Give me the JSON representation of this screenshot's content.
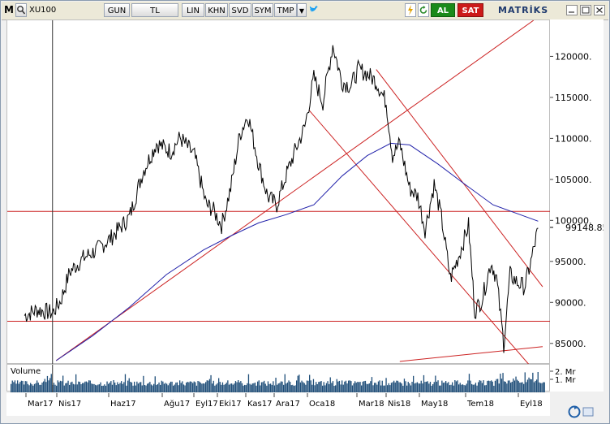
{
  "toolbar": {
    "logo": "M",
    "symbol": "XU100",
    "buttons": [
      "GUN",
      "TL",
      "LIN",
      "KHN",
      "SVD",
      "SYM",
      "TMP"
    ],
    "buy_label": "AL",
    "sell_label": "SAT",
    "brand": "MATRİKS"
  },
  "volume_label": "Volume",
  "icons": [
    "app-logo-icon",
    "search-icon",
    "dropdown-icon",
    "twitter-icon",
    "lightning-icon",
    "refresh-icon",
    "window-controls-icon",
    "redo-icon"
  ],
  "colors": {
    "price": "#000000",
    "ma": "#2222aa",
    "trend": "#cc2222",
    "volume": "#1f4e79",
    "al": "#1a8a1a",
    "sat": "#cc1a1a"
  },
  "chart_data": {
    "type": "line",
    "instrument": "XU100",
    "x_labels": [
      "Mar17",
      "Nis17",
      "Haz17",
      "Ağu17",
      "Eyl17",
      "Eki17",
      "Kas17",
      "Ara17",
      "Oca18",
      "Mar18",
      "Nis18",
      "May18",
      "Tem18",
      "Eyl18"
    ],
    "y_ticks": [
      85000,
      90000,
      95000,
      100000,
      105000,
      110000,
      115000,
      120000
    ],
    "y_tick_labels": [
      "85000.",
      "90000.",
      "95000.",
      "100000.",
      "105000.",
      "110000.",
      "115000.",
      "120000."
    ],
    "ylim": [
      82500,
      124500
    ],
    "last_value": 99148.85,
    "last_value_label": "99148.85",
    "volume_ticks": [
      "2. Mr",
      "1. Mr"
    ],
    "price_series": [
      {
        "x": "2017-03-01",
        "y": 88500
      },
      {
        "x": "2017-03-15",
        "y": 89200
      },
      {
        "x": "2017-04-01",
        "y": 88800
      },
      {
        "x": "2017-04-10",
        "y": 90300
      },
      {
        "x": "2017-04-20",
        "y": 93800
      },
      {
        "x": "2017-05-05",
        "y": 95500
      },
      {
        "x": "2017-05-20",
        "y": 96500
      },
      {
        "x": "2017-06-05",
        "y": 98000
      },
      {
        "x": "2017-06-25",
        "y": 100500
      },
      {
        "x": "2017-07-10",
        "y": 106000
      },
      {
        "x": "2017-07-25",
        "y": 109500
      },
      {
        "x": "2017-08-10",
        "y": 108500
      },
      {
        "x": "2017-08-20",
        "y": 110200
      },
      {
        "x": "2017-09-05",
        "y": 108000
      },
      {
        "x": "2017-09-18",
        "y": 102000
      },
      {
        "x": "2017-09-25",
        "y": 101500
      },
      {
        "x": "2017-10-05",
        "y": 99500
      },
      {
        "x": "2017-10-15",
        "y": 104000
      },
      {
        "x": "2017-10-25",
        "y": 110500
      },
      {
        "x": "2017-11-03",
        "y": 113000
      },
      {
        "x": "2017-11-15",
        "y": 107000
      },
      {
        "x": "2017-11-25",
        "y": 103000
      },
      {
        "x": "2017-12-05",
        "y": 102000
      },
      {
        "x": "2017-12-15",
        "y": 105500
      },
      {
        "x": "2017-12-25",
        "y": 108500
      },
      {
        "x": "2018-01-05",
        "y": 111500
      },
      {
        "x": "2018-01-15",
        "y": 117500
      },
      {
        "x": "2018-01-25",
        "y": 114500
      },
      {
        "x": "2018-02-05",
        "y": 121500
      },
      {
        "x": "2018-02-15",
        "y": 117000
      },
      {
        "x": "2018-02-25",
        "y": 116500
      },
      {
        "x": "2018-03-05",
        "y": 118500
      },
      {
        "x": "2018-03-15",
        "y": 118000
      },
      {
        "x": "2018-03-25",
        "y": 117000
      },
      {
        "x": "2018-04-05",
        "y": 114500
      },
      {
        "x": "2018-04-12",
        "y": 108000
      },
      {
        "x": "2018-04-20",
        "y": 109500
      },
      {
        "x": "2018-05-01",
        "y": 104000
      },
      {
        "x": "2018-05-10",
        "y": 103000
      },
      {
        "x": "2018-05-18",
        "y": 99000
      },
      {
        "x": "2018-05-28",
        "y": 104500
      },
      {
        "x": "2018-06-05",
        "y": 100500
      },
      {
        "x": "2018-06-15",
        "y": 93000
      },
      {
        "x": "2018-06-25",
        "y": 96000
      },
      {
        "x": "2018-07-05",
        "y": 99500
      },
      {
        "x": "2018-07-12",
        "y": 89000
      },
      {
        "x": "2018-07-20",
        "y": 90500
      },
      {
        "x": "2018-07-30",
        "y": 95000
      },
      {
        "x": "2018-08-05",
        "y": 93000
      },
      {
        "x": "2018-08-13",
        "y": 85000
      },
      {
        "x": "2018-08-20",
        "y": 93500
      },
      {
        "x": "2018-08-28",
        "y": 92500
      },
      {
        "x": "2018-09-05",
        "y": 92000
      },
      {
        "x": "2018-09-12",
        "y": 95000
      },
      {
        "x": "2018-09-20",
        "y": 99148.85
      }
    ],
    "ma_series": [
      {
        "x": "2017-04-05",
        "y": 83000
      },
      {
        "x": "2017-05-15",
        "y": 86000
      },
      {
        "x": "2017-06-25",
        "y": 89500
      },
      {
        "x": "2017-08-05",
        "y": 93500
      },
      {
        "x": "2017-09-15",
        "y": 96500
      },
      {
        "x": "2017-10-15",
        "y": 98200
      },
      {
        "x": "2017-11-15",
        "y": 99800
      },
      {
        "x": "2017-12-15",
        "y": 100800
      },
      {
        "x": "2018-01-15",
        "y": 102000
      },
      {
        "x": "2018-02-15",
        "y": 105500
      },
      {
        "x": "2018-03-15",
        "y": 108000
      },
      {
        "x": "2018-04-10",
        "y": 109500
      },
      {
        "x": "2018-05-01",
        "y": 109300
      },
      {
        "x": "2018-06-01",
        "y": 107000
      },
      {
        "x": "2018-07-01",
        "y": 104500
      },
      {
        "x": "2018-08-01",
        "y": 102000
      },
      {
        "x": "2018-09-20",
        "y": 100000
      }
    ],
    "horizontal_lines": [
      101200,
      87800
    ],
    "trend_lines": [
      {
        "from": {
          "x": "2017-04-05",
          "y": 83000
        },
        "to": {
          "x": "2018-09-15",
          "y": 124500
        }
      },
      {
        "from": {
          "x": "2018-01-10",
          "y": 113500
        },
        "to": {
          "x": "2018-09-10",
          "y": 82500
        }
      },
      {
        "from": {
          "x": "2018-03-25",
          "y": 118500
        },
        "to": {
          "x": "2018-09-25",
          "y": 92000
        }
      },
      {
        "from": {
          "x": "2018-04-20",
          "y": 82900
        },
        "to": {
          "x": "2018-09-25",
          "y": 84700
        }
      }
    ],
    "cursor_line_x": "2017-04-01"
  }
}
